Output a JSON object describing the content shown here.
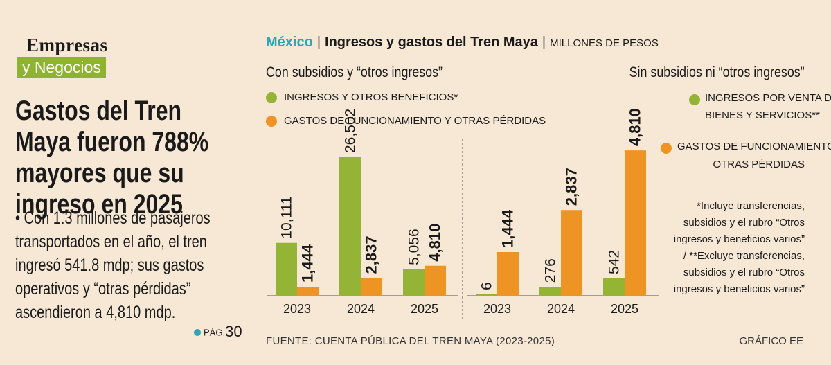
{
  "brand": {
    "top": "Empresas",
    "bottom": "y Negocios"
  },
  "headline": "Gastos del Tren Maya fueron 788% mayores que su ingreso en 2025",
  "summary": "• Con 1.3 millones de pasajeros transportados en el año, el tren ingresó 541.8 mdp;  sus gastos operativos y “otras pérdidas” ascendieron a 4,810 mdp.",
  "page_ref": {
    "label": "PÁG.",
    "number": "30"
  },
  "header": {
    "country": "México",
    "title": "Ingresos y gastos del Tren Maya",
    "units": "MILLONES DE PESOS"
  },
  "left_panel": {
    "title": "Con subsidios y “otros ingresos”",
    "legend": [
      "INGRESOS Y OTROS BENEFICIOS*",
      "GASTOS DE FUNCIONAMIENTO Y OTRAS PÉRDIDAS"
    ]
  },
  "right_panel": {
    "title": "Sin subsidios ni “otros ingresos”",
    "legend_1": [
      "INGRESOS POR VENTA DE",
      "BIENES Y SERVICIOS**"
    ],
    "legend_2": [
      "GASTOS DE FUNCIONAMIENTO Y",
      "OTRAS PÉRDIDAS"
    ],
    "notes": [
      "*Incluye transferencias,",
      "subsidios y el rubro “Otros",
      "ingresos y beneficios varios”",
      "/ **Excluye transferencias,",
      "subsidios y el rubro “Otros",
      "ingresos y beneficios varios”"
    ]
  },
  "source": "FUENTE: CUENTA PÚBLICA DEL TREN MAYA (2023-2025)",
  "credit": "GRÁFICO EE",
  "colors": {
    "green": "#93b435",
    "orange": "#ee9424",
    "accent": "#2aa6b7",
    "brand_green": "#8db32f"
  },
  "chart_data": [
    {
      "type": "bar",
      "title": "Con subsidios y “otros ingresos”",
      "categories": [
        "2023",
        "2024",
        "2025"
      ],
      "series": [
        {
          "name": "INGRESOS Y OTROS BENEFICIOS*",
          "values": [
            10111,
            26502,
            5056
          ],
          "labels": [
            "10,111",
            "26,502",
            "5,056"
          ]
        },
        {
          "name": "GASTOS DE FUNCIONAMIENTO Y OTRAS PÉRDIDAS",
          "values": [
            1444,
            2837,
            4810
          ],
          "labels": [
            "1,444",
            "2,837",
            "4,810"
          ]
        }
      ]
    },
    {
      "type": "bar",
      "title": "Sin subsidios ni “otros ingresos”",
      "categories": [
        "2023",
        "2024",
        "2025"
      ],
      "series": [
        {
          "name": "INGRESOS POR VENTA DE BIENES Y SERVICIOS**",
          "values": [
            6,
            276,
            542
          ],
          "labels": [
            "6",
            "276",
            "542"
          ]
        },
        {
          "name": "GASTOS DE FUNCIONAMIENTO Y OTRAS PÉRDIDAS",
          "values": [
            1444,
            2837,
            4810
          ],
          "labels": [
            "1,444",
            "2,837",
            "4,810"
          ]
        }
      ]
    }
  ]
}
